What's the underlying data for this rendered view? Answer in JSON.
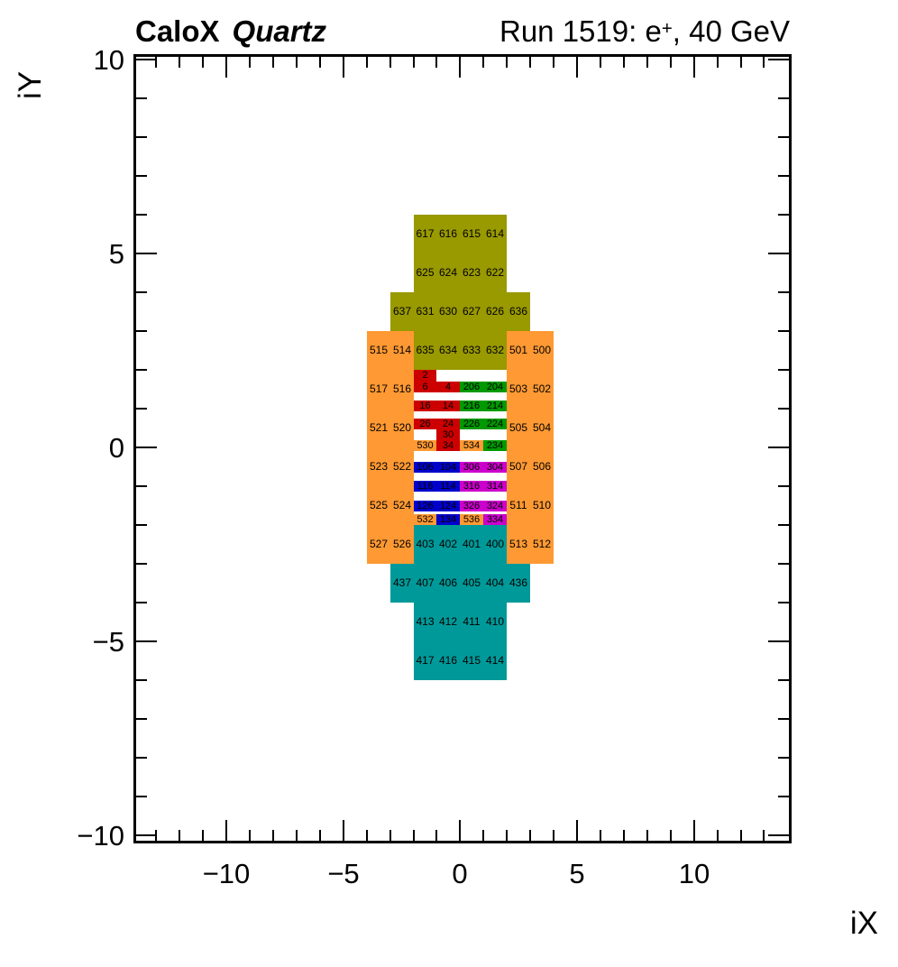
{
  "header": {
    "experiment": "CaloX",
    "detector": "Quartz",
    "run_title_pre": "Run 1519: e",
    "run_title_sup": "+",
    "run_title_post": ", 40 GeV"
  },
  "chart_data": {
    "type": "heatmap",
    "title": "CaloX Quartz",
    "right_title": "Run 1519: e+, 40 GeV",
    "xlabel": "iX",
    "ylabel": "iY",
    "x_axis": {
      "min": -13.9,
      "max": 14.1,
      "tick_min": -13,
      "tick_max": 13,
      "minor_step": 1,
      "major_step": 5,
      "majors": [
        {
          "v": -10,
          "label": "−10"
        },
        {
          "v": -5,
          "label": "−5"
        },
        {
          "v": 0,
          "label": "0"
        },
        {
          "v": 5,
          "label": "5"
        },
        {
          "v": 10,
          "label": "10"
        }
      ]
    },
    "y_axis": {
      "min": -10.16,
      "max": 10.09,
      "tick_min": -10,
      "tick_max": 10,
      "minor_step": 1,
      "major_step": 5,
      "majors": [
        {
          "v": -10,
          "label": "−10"
        },
        {
          "v": -5,
          "label": "−5"
        },
        {
          "v": 0,
          "label": "0"
        },
        {
          "v": 5,
          "label": "5"
        },
        {
          "v": 10,
          "label": "10"
        }
      ]
    },
    "colors": {
      "ol": "#999900",
      "or": "#FF9933",
      "tl": "#009999",
      "rd": "#CC0000",
      "gn": "#009900",
      "bl": "#0000CC",
      "mg": "#CC00CC"
    },
    "color_names": {
      "ol": "olive-600-block",
      "or": "orange-500-block",
      "tl": "teal-400-block",
      "rd": "red-core",
      "gn": "green-200-block",
      "bl": "blue-100-block",
      "mg": "magenta-300-block"
    },
    "cell_width": 1,
    "default_cell_height": 1,
    "cells": [
      [
        "617",
        -2,
        5,
        "ol"
      ],
      [
        "616",
        -1,
        5,
        "ol"
      ],
      [
        "615",
        0,
        5,
        "ol"
      ],
      [
        "614",
        1,
        5,
        "ol"
      ],
      [
        "625",
        -2,
        4,
        "ol"
      ],
      [
        "624",
        -1,
        4,
        "ol"
      ],
      [
        "623",
        0,
        4,
        "ol"
      ],
      [
        "622",
        1,
        4,
        "ol"
      ],
      [
        "637",
        -3,
        3,
        "ol"
      ],
      [
        "631",
        -2,
        3,
        "ol"
      ],
      [
        "630",
        -1,
        3,
        "ol"
      ],
      [
        "627",
        0,
        3,
        "ol"
      ],
      [
        "626",
        1,
        3,
        "ol"
      ],
      [
        "636",
        2,
        3,
        "ol"
      ],
      [
        "635",
        -2,
        2,
        "ol"
      ],
      [
        "634",
        -1,
        2,
        "ol"
      ],
      [
        "633",
        0,
        2,
        "ol"
      ],
      [
        "632",
        1,
        2,
        "ol"
      ],
      [
        "515",
        -4,
        2,
        "or"
      ],
      [
        "514",
        -3,
        2,
        "or"
      ],
      [
        "501",
        2,
        2,
        "or"
      ],
      [
        "500",
        3,
        2,
        "or"
      ],
      [
        "517",
        -4,
        1,
        "or"
      ],
      [
        "516",
        -3,
        1,
        "or"
      ],
      [
        "503",
        2,
        1,
        "or"
      ],
      [
        "502",
        3,
        1,
        "or"
      ],
      [
        "521",
        -4,
        0,
        "or"
      ],
      [
        "520",
        -3,
        0,
        "or"
      ],
      [
        "505",
        2,
        0,
        "or"
      ],
      [
        "504",
        3,
        0,
        "or"
      ],
      [
        "523",
        -4,
        -1,
        "or"
      ],
      [
        "522",
        -3,
        -1,
        "or"
      ],
      [
        "507",
        2,
        -1,
        "or"
      ],
      [
        "506",
        3,
        -1,
        "or"
      ],
      [
        "525",
        -4,
        -2,
        "or"
      ],
      [
        "524",
        -3,
        -2,
        "or"
      ],
      [
        "511",
        2,
        -2,
        "or"
      ],
      [
        "510",
        3,
        -2,
        "or"
      ],
      [
        "527",
        -4,
        -3,
        "or"
      ],
      [
        "526",
        -3,
        -3,
        "or"
      ],
      [
        "513",
        2,
        -3,
        "or"
      ],
      [
        "512",
        3,
        -3,
        "or"
      ],
      [
        "2",
        -2,
        1.7,
        "rd",
        0.3
      ],
      [
        "6",
        -2,
        1.42,
        "rd",
        0.28
      ],
      [
        "4",
        -1,
        1.42,
        "rd",
        0.28
      ],
      [
        "206",
        0,
        1.42,
        "gn",
        0.28
      ],
      [
        "204",
        1,
        1.42,
        "gn",
        0.28
      ],
      [
        "16",
        -2,
        0.94,
        "rd",
        0.28
      ],
      [
        "14",
        -1,
        0.94,
        "rd",
        0.28
      ],
      [
        "216",
        0,
        0.94,
        "gn",
        0.28
      ],
      [
        "214",
        1,
        0.94,
        "gn",
        0.28
      ],
      [
        "26",
        -2,
        0.46,
        "rd",
        0.28
      ],
      [
        "24",
        -1,
        0.46,
        "rd",
        0.28
      ],
      [
        "226",
        0,
        0.46,
        "gn",
        0.28
      ],
      [
        "224",
        1,
        0.46,
        "gn",
        0.28
      ],
      [
        "30",
        -1,
        0.18,
        "rd",
        0.28
      ],
      [
        "530",
        -2,
        -0.1,
        "or",
        0.28
      ],
      [
        "34",
        -1,
        -0.1,
        "rd",
        0.28
      ],
      [
        "534",
        0,
        -0.1,
        "or",
        0.28
      ],
      [
        "234",
        1,
        -0.1,
        "gn",
        0.28
      ],
      [
        "106",
        -2,
        -0.65,
        "bl",
        0.28
      ],
      [
        "104",
        -1,
        -0.65,
        "bl",
        0.28
      ],
      [
        "306",
        0,
        -0.65,
        "mg",
        0.28
      ],
      [
        "304",
        1,
        -0.65,
        "mg",
        0.28
      ],
      [
        "116",
        -2,
        -1.14,
        "bl",
        0.28
      ],
      [
        "114",
        -1,
        -1.14,
        "bl",
        0.28
      ],
      [
        "316",
        0,
        -1.14,
        "mg",
        0.28
      ],
      [
        "314",
        1,
        -1.14,
        "mg",
        0.28
      ],
      [
        "126",
        -2,
        -1.65,
        "bl",
        0.28
      ],
      [
        "124",
        -1,
        -1.65,
        "bl",
        0.28
      ],
      [
        "326",
        0,
        -1.65,
        "mg",
        0.28
      ],
      [
        "324",
        1,
        -1.65,
        "mg",
        0.28
      ],
      [
        "532",
        -2,
        -2.0,
        "or",
        0.28
      ],
      [
        "134",
        -1,
        -2.0,
        "bl",
        0.28
      ],
      [
        "536",
        0,
        -2.0,
        "or",
        0.28
      ],
      [
        "334",
        1,
        -2.0,
        "mg",
        0.28
      ],
      [
        "403",
        -2,
        -3,
        "tl"
      ],
      [
        "402",
        -1,
        -3,
        "tl"
      ],
      [
        "401",
        0,
        -3,
        "tl"
      ],
      [
        "400",
        1,
        -3,
        "tl"
      ],
      [
        "437",
        -3,
        -4,
        "tl"
      ],
      [
        "407",
        -2,
        -4,
        "tl"
      ],
      [
        "406",
        -1,
        -4,
        "tl"
      ],
      [
        "405",
        0,
        -4,
        "tl"
      ],
      [
        "404",
        1,
        -4,
        "tl"
      ],
      [
        "436",
        2,
        -4,
        "tl"
      ],
      [
        "413",
        -2,
        -5,
        "tl"
      ],
      [
        "412",
        -1,
        -5,
        "tl"
      ],
      [
        "411",
        0,
        -5,
        "tl"
      ],
      [
        "410",
        1,
        -5,
        "tl"
      ],
      [
        "417",
        -2,
        -6,
        "tl"
      ],
      [
        "416",
        -1,
        -6,
        "tl"
      ],
      [
        "415",
        0,
        -6,
        "tl"
      ],
      [
        "414",
        1,
        -6,
        "tl"
      ]
    ]
  }
}
